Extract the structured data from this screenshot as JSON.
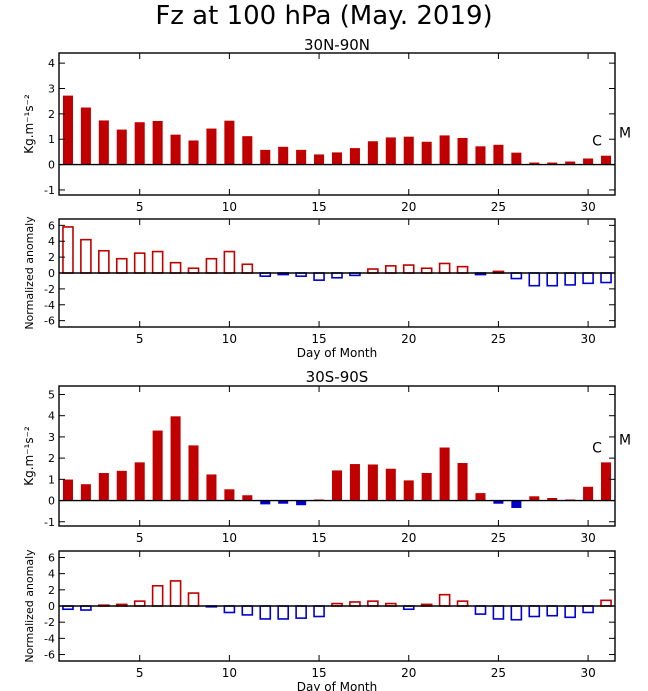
{
  "figure": {
    "title": "Fz at 100 hPa (May. 2019)",
    "colors": {
      "positive": "#c00000",
      "negative": "#0000cc",
      "axis": "#000000"
    }
  },
  "chart_data": [
    {
      "type": "bar",
      "title": "30N-90N",
      "xlabel": "",
      "ylabel": "Kg.m⁻¹s⁻²",
      "x": [
        1,
        2,
        3,
        4,
        5,
        6,
        7,
        8,
        9,
        10,
        11,
        12,
        13,
        14,
        15,
        16,
        17,
        18,
        19,
        20,
        21,
        22,
        23,
        24,
        25,
        26,
        27,
        28,
        29,
        30,
        31
      ],
      "values": [
        2.72,
        2.25,
        1.74,
        1.38,
        1.67,
        1.72,
        1.18,
        0.95,
        1.42,
        1.73,
        1.12,
        0.58,
        0.7,
        0.58,
        0.4,
        0.48,
        0.65,
        0.92,
        1.07,
        1.1,
        0.9,
        1.15,
        1.05,
        0.72,
        0.78,
        0.47,
        0.08,
        0.08,
        0.12,
        0.24,
        0.35
      ],
      "fill": "solid",
      "ylim": [
        -1.2,
        4.4
      ],
      "yticks": [
        -1,
        0,
        1,
        2,
        3,
        4
      ],
      "xlim": [
        0.5,
        31.5
      ],
      "xticks": [
        5,
        10,
        15,
        20,
        25,
        30
      ],
      "annotations": {
        "c": "C",
        "m": "M"
      }
    },
    {
      "type": "bar",
      "title": "",
      "xlabel": "Day of Month",
      "ylabel": "Normalized anomaly",
      "x": [
        1,
        2,
        3,
        4,
        5,
        6,
        7,
        8,
        9,
        10,
        11,
        12,
        13,
        14,
        15,
        16,
        17,
        18,
        19,
        20,
        21,
        22,
        23,
        24,
        25,
        26,
        27,
        28,
        29,
        30,
        31
      ],
      "values": [
        5.8,
        4.2,
        2.8,
        1.8,
        2.5,
        2.7,
        1.3,
        0.6,
        1.8,
        2.7,
        1.1,
        -0.4,
        -0.2,
        -0.4,
        -0.9,
        -0.6,
        -0.3,
        0.5,
        0.9,
        1.0,
        0.6,
        1.2,
        0.8,
        -0.2,
        0.2,
        -0.7,
        -1.6,
        -1.6,
        -1.5,
        -1.3,
        -1.2
      ],
      "fill": "hollow",
      "ylim": [
        -6.8,
        6.8
      ],
      "yticks": [
        -6,
        -4,
        -2,
        0,
        2,
        4,
        6
      ],
      "xlim": [
        0.5,
        31.5
      ],
      "xticks": [
        5,
        10,
        15,
        20,
        25,
        30
      ]
    },
    {
      "type": "bar",
      "title": "30S-90S",
      "xlabel": "",
      "ylabel": "Kg.m⁻¹s⁻²",
      "x": [
        1,
        2,
        3,
        4,
        5,
        6,
        7,
        8,
        9,
        10,
        11,
        12,
        13,
        14,
        15,
        16,
        17,
        18,
        19,
        20,
        21,
        22,
        23,
        24,
        25,
        26,
        27,
        28,
        29,
        30,
        31
      ],
      "values": [
        0.99,
        0.77,
        1.3,
        1.4,
        1.8,
        3.3,
        3.97,
        2.6,
        1.23,
        0.53,
        0.25,
        -0.18,
        -0.15,
        -0.22,
        0.05,
        1.42,
        1.72,
        1.7,
        1.5,
        0.95,
        1.3,
        2.5,
        1.77,
        0.35,
        -0.15,
        -0.35,
        0.2,
        0.12,
        0.05,
        0.65,
        1.8
      ],
      "fill": "solid",
      "ylim": [
        -1.2,
        5.4
      ],
      "yticks": [
        -1,
        0,
        1,
        2,
        3,
        4,
        5
      ],
      "xlim": [
        0.5,
        31.5
      ],
      "xticks": [
        5,
        10,
        15,
        20,
        25,
        30
      ],
      "annotations": {
        "c": "C",
        "m": "M"
      }
    },
    {
      "type": "bar",
      "title": "",
      "xlabel": "Day of Month",
      "ylabel": "Normalized anomaly",
      "x": [
        1,
        2,
        3,
        4,
        5,
        6,
        7,
        8,
        9,
        10,
        11,
        12,
        13,
        14,
        15,
        16,
        17,
        18,
        19,
        20,
        21,
        22,
        23,
        24,
        25,
        26,
        27,
        28,
        29,
        30,
        31
      ],
      "values": [
        -0.4,
        -0.5,
        0.1,
        0.2,
        0.6,
        2.5,
        3.1,
        1.6,
        -0.1,
        -0.8,
        -1.1,
        -1.6,
        -1.6,
        -1.5,
        -1.3,
        0.3,
        0.5,
        0.6,
        0.3,
        -0.4,
        0.2,
        1.4,
        0.6,
        -1.0,
        -1.6,
        -1.7,
        -1.3,
        -1.2,
        -1.4,
        -0.8,
        0.7
      ],
      "fill": "hollow",
      "ylim": [
        -6.8,
        6.8
      ],
      "yticks": [
        -6,
        -4,
        -2,
        0,
        2,
        4,
        6
      ],
      "xlim": [
        0.5,
        31.5
      ],
      "xticks": [
        5,
        10,
        15,
        20,
        25,
        30
      ]
    }
  ]
}
